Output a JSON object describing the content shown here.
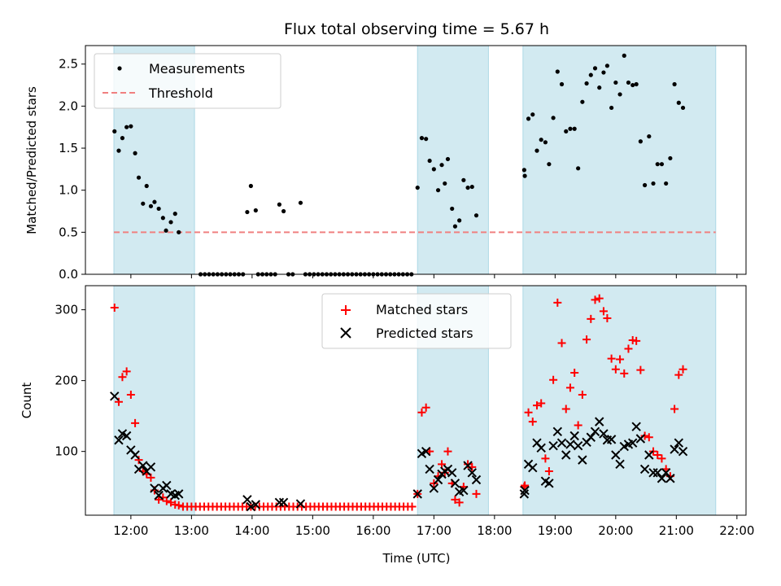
{
  "chart_data": {
    "title": "Flux total observing time = 5.67 h",
    "colors": {
      "shade": "#add8e6",
      "measurement": "#000000",
      "threshold": "#f08080",
      "matched": "#ff0000",
      "predicted": "#000000"
    },
    "shaded_intervals": [
      [
        11.72,
        13.05
      ],
      [
        16.73,
        17.9
      ],
      [
        18.47,
        21.65
      ]
    ],
    "x_axis": {
      "label": "Time (UTC)",
      "range": [
        11.25,
        22.15
      ],
      "ticks": [
        12,
        13,
        14,
        15,
        16,
        17,
        18,
        19,
        20,
        21,
        22
      ],
      "tick_labels": [
        "12:00",
        "13:00",
        "14:00",
        "15:00",
        "16:00",
        "17:00",
        "18:00",
        "19:00",
        "20:00",
        "21:00",
        "22:00"
      ]
    },
    "top": {
      "type": "scatter",
      "ylabel": "Matched/Predicted stars",
      "ylim": [
        0,
        2.72
      ],
      "yticks": [
        0,
        0.5,
        1,
        1.5,
        2,
        2.5
      ],
      "ytick_labels": [
        "0.0",
        "0.5",
        "1.0",
        "1.5",
        "2.0",
        "2.5"
      ],
      "legend": {
        "position": "top-left",
        "measurements_label": "Measurements",
        "threshold_label": "Threshold"
      },
      "threshold": {
        "value": 0.5,
        "x_range": [
          11.72,
          21.65
        ]
      },
      "measurements": [
        [
          11.73,
          1.7
        ],
        [
          11.8,
          1.47
        ],
        [
          11.86,
          1.62
        ],
        [
          11.93,
          1.75
        ],
        [
          12.0,
          1.76
        ],
        [
          12.07,
          1.44
        ],
        [
          12.13,
          1.15
        ],
        [
          12.2,
          0.84
        ],
        [
          12.26,
          1.05
        ],
        [
          12.33,
          0.81
        ],
        [
          12.39,
          0.86
        ],
        [
          12.46,
          0.78
        ],
        [
          12.53,
          0.67
        ],
        [
          12.58,
          0.52
        ],
        [
          12.66,
          0.62
        ],
        [
          12.73,
          0.72
        ],
        [
          12.79,
          0.5
        ],
        [
          13.15,
          0.0
        ],
        [
          13.22,
          0.0
        ],
        [
          13.29,
          0.0
        ],
        [
          13.36,
          0.0
        ],
        [
          13.43,
          0.0
        ],
        [
          13.5,
          0.0
        ],
        [
          13.57,
          0.0
        ],
        [
          13.64,
          0.0
        ],
        [
          13.71,
          0.0
        ],
        [
          13.78,
          0.0
        ],
        [
          13.85,
          0.0
        ],
        [
          13.92,
          0.74
        ],
        [
          13.98,
          1.05
        ],
        [
          14.06,
          0.76
        ],
        [
          14.1,
          0.0
        ],
        [
          14.17,
          0.0
        ],
        [
          14.24,
          0.0
        ],
        [
          14.31,
          0.0
        ],
        [
          14.38,
          0.0
        ],
        [
          14.45,
          0.83
        ],
        [
          14.52,
          0.75
        ],
        [
          14.6,
          0.0
        ],
        [
          14.67,
          0.0
        ],
        [
          14.8,
          0.85
        ],
        [
          14.88,
          0.0
        ],
        [
          14.95,
          0.0
        ],
        [
          15.02,
          0.0
        ],
        [
          15.09,
          0.0
        ],
        [
          15.16,
          0.0
        ],
        [
          15.23,
          0.0
        ],
        [
          15.3,
          0.0
        ],
        [
          15.37,
          0.0
        ],
        [
          15.44,
          0.0
        ],
        [
          15.51,
          0.0
        ],
        [
          15.58,
          0.0
        ],
        [
          15.65,
          0.0
        ],
        [
          15.72,
          0.0
        ],
        [
          15.79,
          0.0
        ],
        [
          15.86,
          0.0
        ],
        [
          15.93,
          0.0
        ],
        [
          16.0,
          0.0
        ],
        [
          16.07,
          0.0
        ],
        [
          16.14,
          0.0
        ],
        [
          16.21,
          0.0
        ],
        [
          16.28,
          0.0
        ],
        [
          16.35,
          0.0
        ],
        [
          16.42,
          0.0
        ],
        [
          16.49,
          0.0
        ],
        [
          16.56,
          0.0
        ],
        [
          16.63,
          0.0
        ],
        [
          16.73,
          1.03
        ],
        [
          16.8,
          1.62
        ],
        [
          16.87,
          1.61
        ],
        [
          16.93,
          1.35
        ],
        [
          17.0,
          1.25
        ],
        [
          17.07,
          1.0
        ],
        [
          17.13,
          1.3
        ],
        [
          17.18,
          1.08
        ],
        [
          17.23,
          1.37
        ],
        [
          17.3,
          0.78
        ],
        [
          17.35,
          0.57
        ],
        [
          17.42,
          0.64
        ],
        [
          17.49,
          1.12
        ],
        [
          17.56,
          1.03
        ],
        [
          17.63,
          1.04
        ],
        [
          17.7,
          0.7
        ],
        [
          18.49,
          1.24
        ],
        [
          18.5,
          1.17
        ],
        [
          18.56,
          1.85
        ],
        [
          18.63,
          1.9
        ],
        [
          18.7,
          1.47
        ],
        [
          18.77,
          1.6
        ],
        [
          18.84,
          1.57
        ],
        [
          18.9,
          1.31
        ],
        [
          18.97,
          1.86
        ],
        [
          19.04,
          2.41
        ],
        [
          19.11,
          2.26
        ],
        [
          19.18,
          1.7
        ],
        [
          19.25,
          1.73
        ],
        [
          19.32,
          1.73
        ],
        [
          19.38,
          1.26
        ],
        [
          19.45,
          2.05
        ],
        [
          19.52,
          2.27
        ],
        [
          19.59,
          2.37
        ],
        [
          19.66,
          2.45
        ],
        [
          19.73,
          2.22
        ],
        [
          19.8,
          2.4
        ],
        [
          19.86,
          2.48
        ],
        [
          19.93,
          1.98
        ],
        [
          20.0,
          2.28
        ],
        [
          20.07,
          2.14
        ],
        [
          20.14,
          2.6
        ],
        [
          20.21,
          2.28
        ],
        [
          20.28,
          2.25
        ],
        [
          20.34,
          2.26
        ],
        [
          20.41,
          1.58
        ],
        [
          20.48,
          1.06
        ],
        [
          20.55,
          1.64
        ],
        [
          20.62,
          1.08
        ],
        [
          20.69,
          1.31
        ],
        [
          20.76,
          1.31
        ],
        [
          20.83,
          1.08
        ],
        [
          20.9,
          1.38
        ],
        [
          20.97,
          2.26
        ],
        [
          21.04,
          2.04
        ],
        [
          21.11,
          1.98
        ]
      ]
    },
    "bottom": {
      "type": "scatter",
      "ylabel": "Count",
      "ylim": [
        10,
        334
      ],
      "yticks": [
        100,
        200,
        300
      ],
      "ytick_labels": [
        "100",
        "200",
        "300"
      ],
      "legend": {
        "position": "top-center",
        "matched_label": "Matched stars",
        "predicted_label": "Predicted stars"
      },
      "matched": [
        [
          11.73,
          303
        ],
        [
          11.8,
          170
        ],
        [
          11.86,
          205
        ],
        [
          11.93,
          213
        ],
        [
          12.0,
          180
        ],
        [
          12.07,
          140
        ],
        [
          12.13,
          88
        ],
        [
          12.2,
          72
        ],
        [
          12.26,
          68
        ],
        [
          12.33,
          63
        ],
        [
          12.39,
          45
        ],
        [
          12.46,
          32
        ],
        [
          12.53,
          35
        ],
        [
          12.59,
          30
        ],
        [
          12.66,
          28
        ],
        [
          12.73,
          25
        ],
        [
          12.79,
          24
        ],
        [
          12.86,
          22
        ],
        [
          12.93,
          22
        ],
        [
          13.0,
          22
        ],
        [
          13.07,
          22
        ],
        [
          13.14,
          22
        ],
        [
          13.21,
          22
        ],
        [
          13.28,
          22
        ],
        [
          13.35,
          22
        ],
        [
          13.42,
          22
        ],
        [
          13.49,
          22
        ],
        [
          13.56,
          22
        ],
        [
          13.63,
          22
        ],
        [
          13.7,
          22
        ],
        [
          13.77,
          22
        ],
        [
          13.84,
          22
        ],
        [
          13.91,
          22
        ],
        [
          13.98,
          22
        ],
        [
          14.05,
          22
        ],
        [
          14.12,
          22
        ],
        [
          14.19,
          22
        ],
        [
          14.26,
          22
        ],
        [
          14.33,
          22
        ],
        [
          14.4,
          22
        ],
        [
          14.47,
          22
        ],
        [
          14.54,
          22
        ],
        [
          14.61,
          22
        ],
        [
          14.68,
          22
        ],
        [
          14.75,
          22
        ],
        [
          14.82,
          22
        ],
        [
          14.89,
          22
        ],
        [
          14.96,
          22
        ],
        [
          15.03,
          22
        ],
        [
          15.1,
          22
        ],
        [
          15.17,
          22
        ],
        [
          15.24,
          22
        ],
        [
          15.31,
          22
        ],
        [
          15.38,
          22
        ],
        [
          15.45,
          22
        ],
        [
          15.52,
          22
        ],
        [
          15.59,
          22
        ],
        [
          15.66,
          22
        ],
        [
          15.73,
          22
        ],
        [
          15.8,
          22
        ],
        [
          15.87,
          22
        ],
        [
          15.94,
          22
        ],
        [
          16.01,
          22
        ],
        [
          16.08,
          22
        ],
        [
          16.15,
          22
        ],
        [
          16.22,
          22
        ],
        [
          16.29,
          22
        ],
        [
          16.36,
          22
        ],
        [
          16.43,
          22
        ],
        [
          16.5,
          22
        ],
        [
          16.57,
          22
        ],
        [
          16.64,
          22
        ],
        [
          16.73,
          40
        ],
        [
          16.8,
          155
        ],
        [
          16.87,
          162
        ],
        [
          16.93,
          100
        ],
        [
          17.0,
          55
        ],
        [
          17.07,
          65
        ],
        [
          17.13,
          82
        ],
        [
          17.18,
          70
        ],
        [
          17.23,
          100
        ],
        [
          17.3,
          55
        ],
        [
          17.35,
          32
        ],
        [
          17.42,
          28
        ],
        [
          17.49,
          50
        ],
        [
          17.56,
          82
        ],
        [
          17.63,
          78
        ],
        [
          17.7,
          40
        ],
        [
          18.49,
          50
        ],
        [
          18.5,
          52
        ],
        [
          18.56,
          155
        ],
        [
          18.63,
          142
        ],
        [
          18.7,
          165
        ],
        [
          18.77,
          168
        ],
        [
          18.84,
          90
        ],
        [
          18.9,
          72
        ],
        [
          18.97,
          201
        ],
        [
          19.04,
          310
        ],
        [
          19.11,
          253
        ],
        [
          19.18,
          160
        ],
        [
          19.25,
          190
        ],
        [
          19.32,
          211
        ],
        [
          19.38,
          137
        ],
        [
          19.45,
          180
        ],
        [
          19.52,
          258
        ],
        [
          19.59,
          287
        ],
        [
          19.66,
          314
        ],
        [
          19.73,
          316
        ],
        [
          19.8,
          298
        ],
        [
          19.86,
          288
        ],
        [
          19.93,
          231
        ],
        [
          20.0,
          216
        ],
        [
          20.07,
          230
        ],
        [
          20.14,
          210
        ],
        [
          20.21,
          245
        ],
        [
          20.28,
          257
        ],
        [
          20.34,
          256
        ],
        [
          20.41,
          215
        ],
        [
          20.48,
          122
        ],
        [
          20.55,
          120
        ],
        [
          20.62,
          100
        ],
        [
          20.69,
          95
        ],
        [
          20.76,
          90
        ],
        [
          20.83,
          75
        ],
        [
          20.9,
          65
        ],
        [
          20.97,
          160
        ],
        [
          21.04,
          208
        ],
        [
          21.11,
          216
        ]
      ],
      "predicted": [
        [
          11.73,
          178
        ],
        [
          11.8,
          116
        ],
        [
          11.86,
          125
        ],
        [
          11.93,
          122
        ],
        [
          12.0,
          102
        ],
        [
          12.07,
          95
        ],
        [
          12.13,
          75
        ],
        [
          12.2,
          80
        ],
        [
          12.26,
          72
        ],
        [
          12.33,
          78
        ],
        [
          12.39,
          48
        ],
        [
          12.46,
          38
        ],
        [
          12.53,
          48
        ],
        [
          12.59,
          52
        ],
        [
          12.66,
          40
        ],
        [
          12.73,
          38
        ],
        [
          12.79,
          40
        ],
        [
          13.92,
          32
        ],
        [
          13.98,
          22
        ],
        [
          14.06,
          25
        ],
        [
          14.45,
          28
        ],
        [
          14.52,
          28
        ],
        [
          14.8,
          26
        ],
        [
          16.73,
          40
        ],
        [
          16.8,
          97
        ],
        [
          16.87,
          100
        ],
        [
          16.93,
          75
        ],
        [
          17.0,
          48
        ],
        [
          17.07,
          60
        ],
        [
          17.13,
          68
        ],
        [
          17.18,
          72
        ],
        [
          17.23,
          75
        ],
        [
          17.3,
          70
        ],
        [
          17.35,
          55
        ],
        [
          17.42,
          43
        ],
        [
          17.49,
          45
        ],
        [
          17.56,
          80
        ],
        [
          17.63,
          70
        ],
        [
          17.7,
          60
        ],
        [
          18.49,
          40
        ],
        [
          18.5,
          45
        ],
        [
          18.56,
          82
        ],
        [
          18.63,
          77
        ],
        [
          18.7,
          112
        ],
        [
          18.77,
          105
        ],
        [
          18.84,
          58
        ],
        [
          18.9,
          55
        ],
        [
          18.97,
          108
        ],
        [
          19.04,
          128
        ],
        [
          19.11,
          112
        ],
        [
          19.18,
          95
        ],
        [
          19.25,
          110
        ],
        [
          19.32,
          122
        ],
        [
          19.38,
          108
        ],
        [
          19.45,
          88
        ],
        [
          19.52,
          113
        ],
        [
          19.59,
          120
        ],
        [
          19.66,
          128
        ],
        [
          19.73,
          142
        ],
        [
          19.8,
          125
        ],
        [
          19.86,
          116
        ],
        [
          19.93,
          117
        ],
        [
          20.0,
          95
        ],
        [
          20.07,
          82
        ],
        [
          20.14,
          107
        ],
        [
          20.21,
          110
        ],
        [
          20.28,
          112
        ],
        [
          20.34,
          135
        ],
        [
          20.41,
          118
        ],
        [
          20.48,
          75
        ],
        [
          20.55,
          95
        ],
        [
          20.62,
          70
        ],
        [
          20.69,
          70
        ],
        [
          20.76,
          62
        ],
        [
          20.83,
          70
        ],
        [
          20.9,
          62
        ],
        [
          20.97,
          103
        ],
        [
          21.04,
          112
        ],
        [
          21.11,
          100
        ]
      ]
    }
  }
}
